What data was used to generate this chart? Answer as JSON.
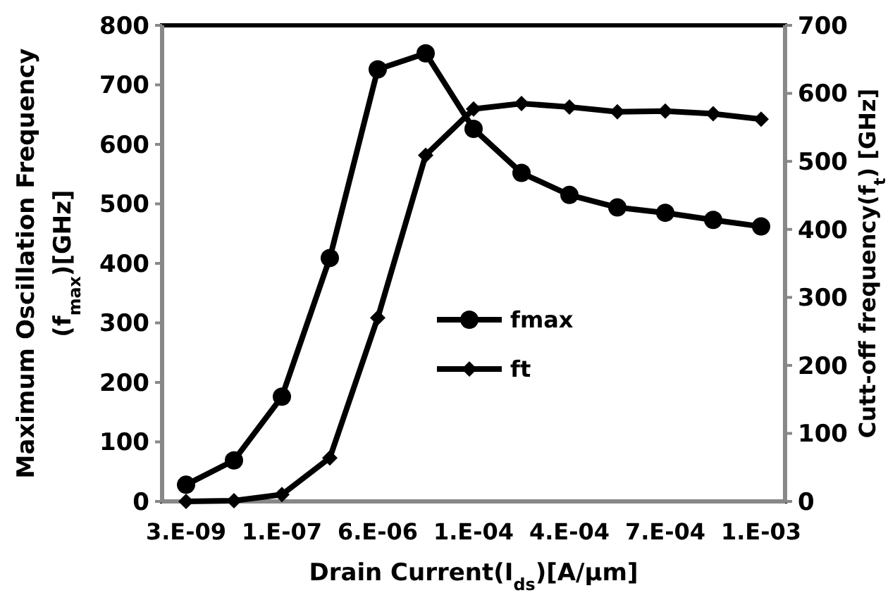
{
  "chart_data": {
    "type": "line",
    "xlabel": "Drain Current(I$_{ds}$)[A/μm]",
    "ylabel": "Maximum Oscillation Frequency\n(f$_{max}$)[GHz]",
    "y2label": "Cutt-off frequency(f$_{t}$) [GHz]",
    "categories": [
      "3.E-09",
      null,
      "1.E-07",
      null,
      "6.E-06",
      null,
      "1.E-04",
      null,
      "4.E-04",
      null,
      "7.E-04",
      null,
      "1.E-03"
    ],
    "series": [
      {
        "name": "fmax",
        "color": "#000000",
        "marker": "circle",
        "values": [
          28,
          69,
          176,
          409,
          726,
          753,
          626,
          552,
          515,
          494,
          485,
          473,
          462
        ]
      },
      {
        "name": "ft",
        "color": "#000000",
        "marker": "diamond",
        "axis": "y2",
        "values": [
          0,
          1,
          10,
          64,
          270,
          509,
          577,
          585,
          580,
          573,
          574,
          570,
          562
        ]
      }
    ],
    "ylim": [
      0,
      800
    ],
    "yticks": [
      0,
      100,
      200,
      300,
      400,
      500,
      600,
      700,
      800
    ],
    "y2lim": [
      0,
      700
    ],
    "y2ticks": [
      0,
      100,
      200,
      300,
      400,
      500,
      600,
      700
    ],
    "legend": "center",
    "grid": false
  }
}
